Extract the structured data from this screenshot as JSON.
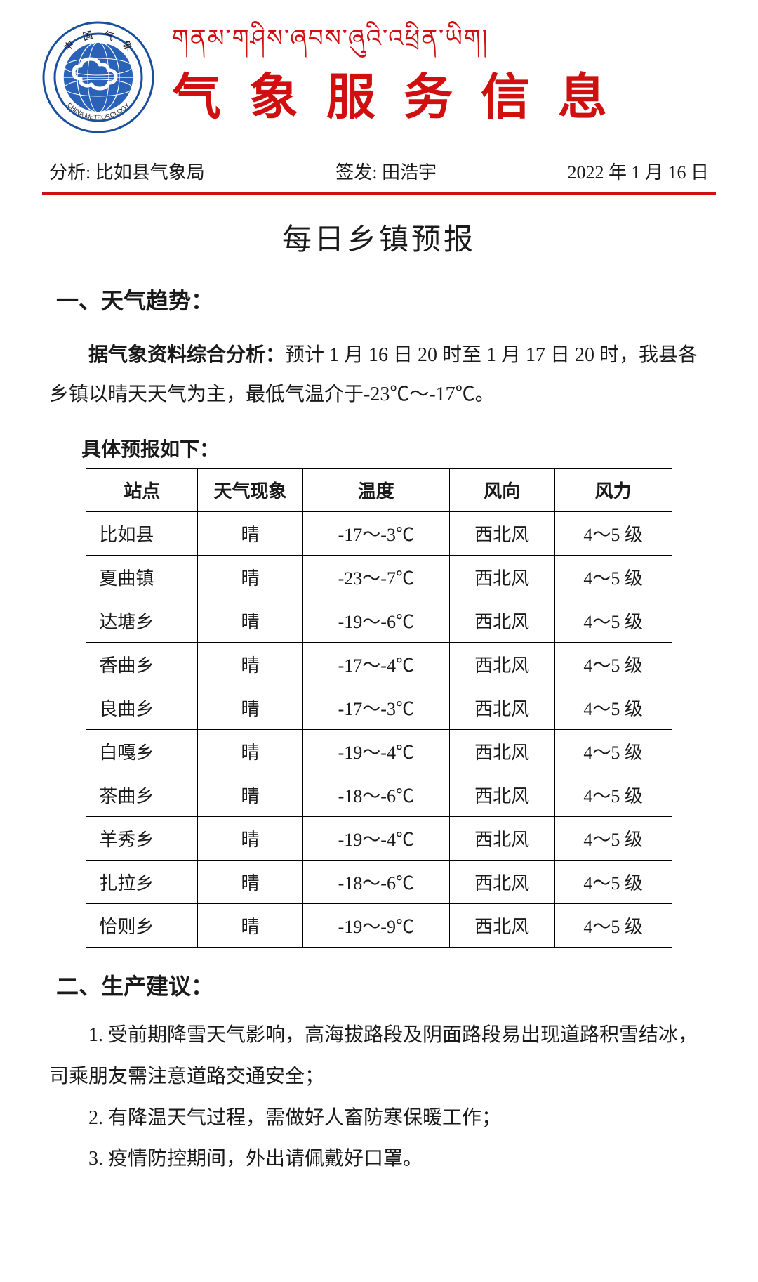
{
  "header": {
    "tibetan_title": "གནམ་གཤིས་ཞབས་ཞུའི་འཕྲིན་ཡིག།",
    "main_title": "气象服务信息",
    "logo": {
      "top_text": "中 国 气 象",
      "bottom_text": "CHINA METEOROLOGY",
      "outer_ring_color": "#1a4fa0",
      "inner_bg_color": "#2a62b8",
      "globe_color": "#ffffff",
      "cloud_color": "#ffffff"
    }
  },
  "meta": {
    "analysis_label": "分析:",
    "analysis_value": "比如县气象局",
    "issuer_label": "签发:",
    "issuer_value": "田浩宇",
    "date": "2022 年 1 月 16 日",
    "underline_color": "#d01010"
  },
  "doc_title": "每日乡镇预报",
  "section1": {
    "heading": "一、天气趋势：",
    "lead": "据气象资料综合分析：",
    "body": "预计 1 月 16 日 20 时至 1 月 17 日 20 时，我县各乡镇以晴天天气为主，最低气温介于-23℃～-17℃。",
    "sub_lead": "具体预报如下："
  },
  "table": {
    "columns": [
      "站点",
      "天气现象",
      "温度",
      "风向",
      "风力"
    ],
    "col_widths": [
      "19%",
      "18%",
      "25%",
      "18%",
      "20%"
    ],
    "rows": [
      [
        "比如县",
        "晴",
        "-17～-3℃",
        "西北风",
        "4～5 级"
      ],
      [
        "夏曲镇",
        "晴",
        "-23～-7℃",
        "西北风",
        "4～5 级"
      ],
      [
        "达塘乡",
        "晴",
        "-19～-6℃",
        "西北风",
        "4～5 级"
      ],
      [
        "香曲乡",
        "晴",
        "-17～-4℃",
        "西北风",
        "4～5 级"
      ],
      [
        "良曲乡",
        "晴",
        "-17～-3℃",
        "西北风",
        "4～5 级"
      ],
      [
        "白嘎乡",
        "晴",
        "-19～-4℃",
        "西北风",
        "4～5 级"
      ],
      [
        "茶曲乡",
        "晴",
        "-18～-6℃",
        "西北风",
        "4～5 级"
      ],
      [
        "羊秀乡",
        "晴",
        "-19～-4℃",
        "西北风",
        "4～5 级"
      ],
      [
        "扎拉乡",
        "晴",
        "-18～-6℃",
        "西北风",
        "4～5 级"
      ],
      [
        "恰则乡",
        "晴",
        "-19～-9℃",
        "西北风",
        "4～5 级"
      ]
    ]
  },
  "section2": {
    "heading": "二、生产建议：",
    "items": [
      "1. 受前期降雪天气影响，高海拔路段及阴面路段易出现道路积雪结冰，司乘朋友需注意道路交通安全；",
      "2. 有降温天气过程，需做好人畜防寒保暖工作；",
      "3. 疫情防控期间，外出请佩戴好口罩。"
    ]
  }
}
